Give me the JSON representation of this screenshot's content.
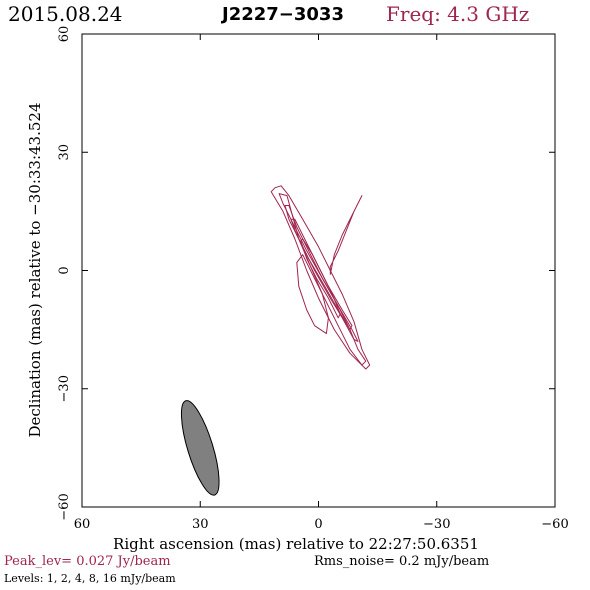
{
  "header": {
    "date": "2015.08.24",
    "source": "J2227−3033",
    "freq": "Freq: 4.3 GHz"
  },
  "footer": {
    "peak": "Peak_lev=  0.027 Jy/beam",
    "rms": "Rms_noise=  0.2 mJy/beam",
    "levels": "Levels:  1,  2,  4,  8,  16 mJy/beam"
  },
  "colors": {
    "contour": "#a0254f",
    "beam_fill": "#808080",
    "text_accent": "#a0254f"
  },
  "chart_data": {
    "type": "contour",
    "title": "J2227−3033",
    "xlabel": "Right ascension (mas) relative to 22:27:50.6351",
    "ylabel": "Declination (mas) relative to −30:33:43.524",
    "xlim": [
      60,
      -60
    ],
    "ylim": [
      -60,
      60
    ],
    "xticks": [
      60,
      30,
      0,
      -30,
      -60
    ],
    "yticks": [
      -60,
      -30,
      0,
      30,
      60
    ],
    "xtick_labels": [
      "60",
      "30",
      "0",
      "−30",
      "−60"
    ],
    "ytick_labels": [
      "−60",
      "−30",
      "0",
      "30",
      "60"
    ],
    "levels_mjy": [
      1,
      2,
      4,
      8,
      16
    ],
    "peak_jy_per_beam": 0.027,
    "rms_mjy_per_beam": 0.2,
    "contours": [
      {
        "level": 1,
        "points": [
          [
            11,
            21
          ],
          [
            9.5,
            21.5
          ],
          [
            7.5,
            19
          ],
          [
            4,
            13
          ],
          [
            0,
            6
          ],
          [
            -3,
            0
          ],
          [
            -6,
            -6
          ],
          [
            -9,
            -13
          ],
          [
            -11,
            -20
          ],
          [
            -13,
            -24
          ],
          [
            -12,
            -25
          ],
          [
            -8,
            -21
          ],
          [
            -4,
            -15
          ],
          [
            0,
            -7
          ],
          [
            3,
            0
          ],
          [
            6,
            8
          ],
          [
            9,
            15
          ],
          [
            12,
            20
          ]
        ]
      },
      {
        "level": 1,
        "points": [
          [
            4,
            4
          ],
          [
            5.5,
            2
          ],
          [
            5,
            -4
          ],
          [
            3,
            -10
          ],
          [
            1,
            -14
          ],
          [
            -2,
            -16
          ],
          [
            -2.5,
            -12
          ],
          [
            -1,
            -6
          ],
          [
            2,
            0
          ]
        ]
      },
      {
        "level": 1,
        "points": [
          [
            -11,
            19
          ],
          [
            -10,
            17
          ],
          [
            -8,
            13
          ],
          [
            -6,
            9
          ],
          [
            -4,
            4
          ],
          [
            -3,
            -1
          ],
          [
            -3,
            1
          ],
          [
            -5,
            5
          ],
          [
            -7,
            10
          ],
          [
            -9,
            15
          ],
          [
            -10.5,
            18
          ]
        ]
      },
      {
        "level": 2,
        "points": [
          [
            8,
            19
          ],
          [
            10,
            19.5
          ],
          [
            9,
            17
          ],
          [
            6.5,
            12
          ],
          [
            3,
            5
          ],
          [
            -1,
            -2
          ],
          [
            -5,
            -9
          ],
          [
            -8,
            -15
          ],
          [
            -10,
            -20
          ],
          [
            -12,
            -23
          ],
          [
            -11,
            -24
          ],
          [
            -8,
            -20
          ],
          [
            -5,
            -14
          ],
          [
            -1,
            -6
          ],
          [
            2,
            1
          ],
          [
            5,
            8
          ]
        ]
      },
      {
        "level": 4,
        "points": [
          [
            7.5,
            16.5
          ],
          [
            8.5,
            16.5
          ],
          [
            7.5,
            13
          ],
          [
            4.5,
            7
          ],
          [
            1,
            0
          ],
          [
            -3,
            -7
          ],
          [
            -6,
            -12
          ],
          [
            -9,
            -17.5
          ],
          [
            -10,
            -18
          ],
          [
            -8.5,
            -15
          ],
          [
            -5,
            -9
          ],
          [
            -1,
            -2
          ],
          [
            2.5,
            5
          ],
          [
            5.5,
            11
          ]
        ]
      },
      {
        "level": 8,
        "points": [
          [
            6,
            13
          ],
          [
            7,
            13
          ],
          [
            5.5,
            9
          ],
          [
            2.5,
            3
          ],
          [
            -1,
            -3
          ],
          [
            -5,
            -10
          ],
          [
            -8,
            -15
          ],
          [
            -8.5,
            -14
          ],
          [
            -6,
            -10
          ],
          [
            -2.5,
            -4
          ],
          [
            0.5,
            2
          ],
          [
            3.5,
            8
          ]
        ]
      },
      {
        "level": 16,
        "points": [
          [
            4,
            8
          ],
          [
            4.5,
            7.5
          ],
          [
            3,
            3
          ],
          [
            0.5,
            -2
          ],
          [
            -2.5,
            -7
          ],
          [
            -5,
            -12
          ],
          [
            -5.5,
            -11
          ],
          [
            -3.5,
            -6
          ],
          [
            -1,
            -1
          ],
          [
            1.5,
            4
          ]
        ]
      }
    ],
    "beam": {
      "x": 30,
      "y": -45,
      "major": 25,
      "minor": 3.2,
      "pa": 17
    }
  }
}
